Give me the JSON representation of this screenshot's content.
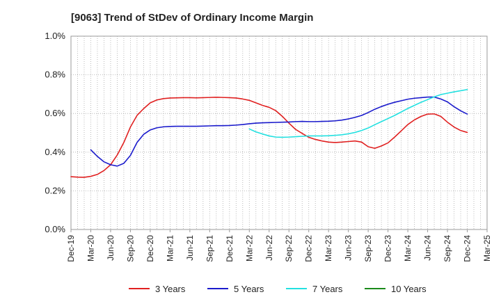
{
  "chart_data": {
    "type": "line",
    "title": "[9063]  Trend of StDev of Ordinary Income Margin",
    "xlabel": "",
    "ylabel": "",
    "ylim": [
      0,
      1.0
    ],
    "y_ticks": [
      "0.0%",
      "0.2%",
      "0.4%",
      "0.6%",
      "0.8%",
      "1.0%"
    ],
    "y_tick_values": [
      0,
      0.2,
      0.4,
      0.6,
      0.8,
      1.0
    ],
    "x_range": [
      "Dec-19",
      "Mar-25"
    ],
    "x_ticks": [
      "Dec-19",
      "Mar-20",
      "Jun-20",
      "Sep-20",
      "Dec-20",
      "Mar-21",
      "Jun-21",
      "Sep-21",
      "Dec-21",
      "Mar-22",
      "Jun-22",
      "Sep-22",
      "Dec-22",
      "Mar-23",
      "Jun-23",
      "Sep-23",
      "Dec-23",
      "Mar-24",
      "Jun-24",
      "Sep-24",
      "Dec-24",
      "Mar-25"
    ],
    "grid": true,
    "legend_position": "bottom",
    "series": [
      {
        "name": "3 Years",
        "color": "#e02020",
        "x": [
          "Dec-19",
          "Jan-20",
          "Feb-20",
          "Mar-20",
          "Apr-20",
          "May-20",
          "Jun-20",
          "Jul-20",
          "Aug-20",
          "Sep-20",
          "Oct-20",
          "Nov-20",
          "Dec-20",
          "Jan-21",
          "Feb-21",
          "Mar-21",
          "Apr-21",
          "May-21",
          "Jun-21",
          "Jul-21",
          "Aug-21",
          "Sep-21",
          "Oct-21",
          "Nov-21",
          "Dec-21",
          "Jan-22",
          "Feb-22",
          "Mar-22",
          "Apr-22",
          "May-22",
          "Jun-22",
          "Jul-22",
          "Aug-22",
          "Sep-22",
          "Oct-22",
          "Nov-22",
          "Dec-22",
          "Jan-23",
          "Feb-23",
          "Mar-23",
          "Apr-23",
          "May-23",
          "Jun-23",
          "Jul-23",
          "Aug-23",
          "Sep-23",
          "Oct-23",
          "Nov-23",
          "Dec-23",
          "Jan-24",
          "Feb-24",
          "Mar-24",
          "Apr-24",
          "May-24",
          "Jun-24",
          "Jul-24",
          "Aug-24",
          "Sep-24",
          "Oct-24",
          "Nov-24",
          "Dec-24"
        ],
        "values": [
          0.273,
          0.271,
          0.27,
          0.275,
          0.285,
          0.305,
          0.335,
          0.385,
          0.45,
          0.53,
          0.59,
          0.625,
          0.655,
          0.67,
          0.677,
          0.68,
          0.681,
          0.682,
          0.682,
          0.681,
          0.682,
          0.683,
          0.684,
          0.683,
          0.682,
          0.68,
          0.675,
          0.668,
          0.655,
          0.642,
          0.632,
          0.615,
          0.585,
          0.55,
          0.518,
          0.497,
          0.477,
          0.466,
          0.458,
          0.452,
          0.45,
          0.452,
          0.455,
          0.458,
          0.452,
          0.428,
          0.42,
          0.432,
          0.448,
          0.478,
          0.51,
          0.543,
          0.567,
          0.585,
          0.597,
          0.598,
          0.585,
          0.555,
          0.53,
          0.512,
          0.502
        ]
      },
      {
        "name": "5 Years",
        "color": "#1a1acc",
        "x": [
          "Mar-20",
          "Apr-20",
          "May-20",
          "Jun-20",
          "Jul-20",
          "Aug-20",
          "Sep-20",
          "Oct-20",
          "Nov-20",
          "Dec-20",
          "Jan-21",
          "Feb-21",
          "Mar-21",
          "Apr-21",
          "May-21",
          "Jun-21",
          "Jul-21",
          "Aug-21",
          "Sep-21",
          "Oct-21",
          "Nov-21",
          "Dec-21",
          "Jan-22",
          "Feb-22",
          "Mar-22",
          "Apr-22",
          "May-22",
          "Jun-22",
          "Jul-22",
          "Aug-22",
          "Sep-22",
          "Oct-22",
          "Nov-22",
          "Dec-22",
          "Jan-23",
          "Feb-23",
          "Mar-23",
          "Apr-23",
          "May-23",
          "Jun-23",
          "Jul-23",
          "Aug-23",
          "Sep-23",
          "Oct-23",
          "Nov-23",
          "Dec-23",
          "Jan-24",
          "Feb-24",
          "Mar-24",
          "Apr-24",
          "May-24",
          "Jun-24",
          "Jul-24",
          "Aug-24",
          "Sep-24",
          "Oct-24",
          "Nov-24",
          "Dec-24"
        ],
        "values": [
          0.412,
          0.378,
          0.35,
          0.335,
          0.328,
          0.342,
          0.383,
          0.45,
          0.492,
          0.515,
          0.526,
          0.531,
          0.533,
          0.534,
          0.534,
          0.534,
          0.534,
          0.535,
          0.536,
          0.537,
          0.537,
          0.538,
          0.54,
          0.543,
          0.547,
          0.55,
          0.552,
          0.553,
          0.554,
          0.555,
          0.556,
          0.558,
          0.559,
          0.558,
          0.558,
          0.559,
          0.56,
          0.562,
          0.566,
          0.572,
          0.58,
          0.59,
          0.605,
          0.622,
          0.636,
          0.648,
          0.658,
          0.666,
          0.674,
          0.679,
          0.682,
          0.685,
          0.685,
          0.675,
          0.66,
          0.635,
          0.614,
          0.597
        ]
      },
      {
        "name": "7 Years",
        "color": "#22e0e0",
        "x": [
          "Mar-22",
          "Apr-22",
          "May-22",
          "Jun-22",
          "Jul-22",
          "Aug-22",
          "Sep-22",
          "Oct-22",
          "Nov-22",
          "Dec-22",
          "Jan-23",
          "Feb-23",
          "Mar-23",
          "Apr-23",
          "May-23",
          "Jun-23",
          "Jul-23",
          "Aug-23",
          "Sep-23",
          "Oct-23",
          "Nov-23",
          "Dec-23",
          "Jan-24",
          "Feb-24",
          "Mar-24",
          "Apr-24",
          "May-24",
          "Jun-24",
          "Jul-24",
          "Aug-24",
          "Sep-24",
          "Oct-24",
          "Nov-24",
          "Dec-24"
        ],
        "values": [
          0.52,
          0.505,
          0.494,
          0.484,
          0.478,
          0.477,
          0.478,
          0.48,
          0.482,
          0.484,
          0.484,
          0.484,
          0.485,
          0.487,
          0.49,
          0.495,
          0.502,
          0.512,
          0.525,
          0.542,
          0.558,
          0.574,
          0.59,
          0.608,
          0.626,
          0.642,
          0.658,
          0.672,
          0.686,
          0.698,
          0.705,
          0.712,
          0.718,
          0.724
        ]
      },
      {
        "name": "10 Years",
        "color": "#1a8a1a",
        "x": [],
        "values": []
      }
    ]
  }
}
